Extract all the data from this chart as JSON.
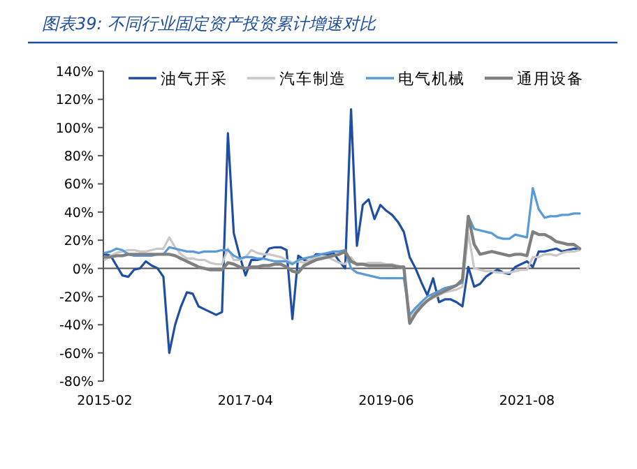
{
  "chart_data": {
    "type": "line",
    "title": "图表39: 不同行业固定资产投资累计增速对比",
    "categories": [
      "2015-02",
      null,
      null,
      null,
      null,
      null,
      null,
      null,
      null,
      null,
      null,
      null,
      null,
      null,
      null,
      null,
      null,
      null,
      null,
      null,
      null,
      null,
      null,
      null,
      "2017-04",
      null,
      null,
      null,
      null,
      null,
      null,
      null,
      null,
      null,
      null,
      null,
      null,
      null,
      null,
      null,
      null,
      null,
      null,
      null,
      null,
      null,
      null,
      null,
      "2019-06",
      null,
      null,
      null,
      null,
      null,
      null,
      null,
      null,
      null,
      null,
      null,
      null,
      null,
      null,
      null,
      null,
      null,
      null,
      null,
      null,
      null,
      null,
      null,
      "2021-08",
      null,
      null,
      null,
      null,
      null,
      null,
      null,
      null,
      null
    ],
    "series": [
      {
        "name": "油气开采",
        "color": "#1f4ea3",
        "values": [
          10,
          9,
          2,
          -5,
          -6,
          -1,
          0,
          5,
          2,
          0,
          -6,
          -60,
          -40,
          -27,
          -17,
          -18,
          -27,
          -29,
          -31,
          -33,
          -31,
          96,
          25,
          9,
          -5,
          6,
          6,
          7,
          14,
          15,
          15,
          13,
          -36,
          9,
          6,
          5,
          10,
          10,
          10,
          11,
          5,
          0,
          113,
          16,
          45,
          49,
          35,
          45,
          41,
          38,
          33,
          26,
          8,
          0,
          -10,
          -19,
          -7,
          -24,
          -22,
          -22,
          -24,
          -27,
          1,
          -13,
          -11,
          -6,
          -3,
          -1,
          -3,
          -4,
          1,
          3,
          5,
          1,
          12,
          12,
          13,
          14,
          12,
          13,
          14,
          14
        ]
      },
      {
        "name": "汽车制造",
        "color": "#c8c8c8",
        "values": [
          6,
          9,
          11,
          12,
          13,
          13,
          12,
          12,
          13,
          14,
          14,
          22,
          15,
          10,
          7,
          7,
          6,
          6,
          4,
          3,
          3,
          14,
          6,
          6,
          8,
          13,
          11,
          10,
          10,
          9,
          8,
          6,
          4,
          5,
          4,
          6,
          8,
          8,
          8,
          6,
          4,
          3,
          8,
          2,
          3,
          4,
          4,
          4,
          3,
          3,
          2,
          0,
          -36,
          -30,
          -26,
          -23,
          -21,
          -19,
          -17,
          -16,
          -15,
          -13,
          25,
          0,
          -1,
          -2,
          -2,
          -3,
          -3,
          -3,
          -2,
          -1,
          -1,
          8,
          8,
          10,
          10,
          9,
          11,
          12,
          12,
          13
        ]
      },
      {
        "name": "电气机械",
        "color": "#5b9bd5",
        "values": [
          11,
          12,
          14,
          13,
          10,
          9,
          9,
          9,
          9,
          10,
          10,
          15,
          14,
          13,
          12,
          12,
          11,
          12,
          12,
          12,
          13,
          13,
          9,
          7,
          8,
          8,
          7,
          7,
          6,
          5,
          5,
          5,
          3,
          6,
          7,
          8,
          9,
          10,
          11,
          12,
          12,
          13,
          0,
          -3,
          -4,
          -5,
          -6,
          -7,
          -7,
          -7,
          -7,
          -7,
          -33,
          -28,
          -24,
          -20,
          -18,
          -16,
          -14,
          -13,
          -12,
          -10,
          37,
          28,
          27,
          26,
          25,
          22,
          21,
          21,
          24,
          23,
          22,
          57,
          42,
          36,
          37,
          37,
          38,
          38,
          39,
          39
        ]
      },
      {
        "name": "通用设备",
        "color": "#808080",
        "values": [
          8,
          8,
          9,
          9,
          10,
          10,
          10,
          10,
          10,
          10,
          10,
          10,
          9,
          7,
          5,
          3,
          1,
          0,
          -1,
          -1,
          -1,
          4,
          3,
          1,
          0,
          1,
          1,
          2,
          2,
          3,
          3,
          1,
          -2,
          -3,
          2,
          4,
          6,
          7,
          8,
          9,
          10,
          12,
          5,
          3,
          3,
          2,
          2,
          2,
          2,
          2,
          1,
          1,
          -39,
          -32,
          -27,
          -23,
          -20,
          -18,
          -16,
          -14,
          -12,
          -8,
          37,
          17,
          10,
          11,
          12,
          11,
          10,
          9,
          10,
          10,
          9,
          26,
          24,
          24,
          22,
          19,
          18,
          17,
          17,
          14
        ]
      }
    ],
    "ylim": [
      -80,
      140
    ],
    "yticks": [
      {
        "value": -80,
        "label": "-80%"
      },
      {
        "value": -60,
        "label": "-60%"
      },
      {
        "value": -40,
        "label": "-40%"
      },
      {
        "value": -20,
        "label": "-20%"
      },
      {
        "value": 0,
        "label": "0%"
      },
      {
        "value": 20,
        "label": "20%"
      },
      {
        "value": 40,
        "label": "40%"
      },
      {
        "value": 60,
        "label": "60%"
      },
      {
        "value": 80,
        "label": "80%"
      },
      {
        "value": 100,
        "label": "100%"
      },
      {
        "value": 120,
        "label": "120%"
      },
      {
        "value": 140,
        "label": "140%"
      }
    ],
    "legend": "top",
    "marker": "none",
    "line_style": "solid"
  }
}
